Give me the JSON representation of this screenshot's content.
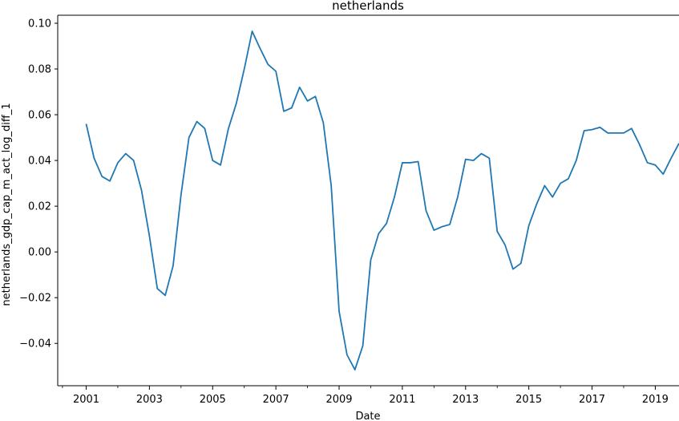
{
  "chart_data": {
    "type": "line",
    "title": "netherlands",
    "xlabel": "Date",
    "ylabel": "netherlands_gdp_cap_m_act_log_diff_1",
    "xlim": [
      2000.1,
      2019.75
    ],
    "ylim": [
      -0.0585,
      0.1035
    ],
    "grid": false,
    "color": "#1f77b4",
    "x_major_ticks": [
      2001,
      2003,
      2005,
      2007,
      2009,
      2011,
      2013,
      2015,
      2017,
      2019
    ],
    "x_minor_ticks": [
      2000.25,
      2002,
      2004,
      2006,
      2008,
      2010,
      2012,
      2014,
      2016,
      2018
    ],
    "y_ticks": [
      -0.04,
      -0.02,
      0.0,
      0.02,
      0.04,
      0.06,
      0.08,
      0.1
    ],
    "y_tick_labels": [
      "−0.04",
      "−0.02",
      "0.00",
      "0.02",
      "0.04",
      "0.06",
      "0.08",
      "0.10"
    ],
    "x_tick_labels": [
      "2001",
      "2003",
      "2005",
      "2007",
      "2009",
      "2011",
      "2013",
      "2015",
      "2017",
      "2019"
    ],
    "series": [
      {
        "x": [
          2001.0,
          2001.25,
          2001.5,
          2001.75,
          2002.0,
          2002.25,
          2002.5,
          2002.75,
          2003.0,
          2003.25,
          2003.5,
          2003.75,
          2004.0,
          2004.25,
          2004.5,
          2004.75,
          2005.0,
          2005.25,
          2005.5,
          2005.75,
          2006.0,
          2006.25,
          2006.5,
          2006.75,
          2007.0,
          2007.25,
          2007.5,
          2007.75,
          2008.0,
          2008.25,
          2008.5,
          2008.75,
          2009.0,
          2009.25,
          2009.5,
          2009.75,
          2010.0,
          2010.25,
          2010.5,
          2010.75,
          2011.0,
          2011.25,
          2011.5,
          2011.75,
          2012.0,
          2012.25,
          2012.5,
          2012.75,
          2013.0,
          2013.25,
          2013.5,
          2013.75,
          2014.0,
          2014.25,
          2014.5,
          2014.75,
          2015.0,
          2015.25,
          2015.5,
          2015.75,
          2016.0,
          2016.25,
          2016.5,
          2016.75,
          2017.0,
          2017.25,
          2017.5,
          2017.75,
          2018.0,
          2018.25,
          2018.5,
          2018.75,
          2019.0,
          2019.25,
          2019.5,
          2019.75
        ],
        "values": [
          0.056,
          0.041,
          0.033,
          0.031,
          0.039,
          0.043,
          0.04,
          0.027,
          0.007,
          -0.016,
          -0.019,
          -0.006,
          0.025,
          0.05,
          0.057,
          0.054,
          0.04,
          0.038,
          0.054,
          0.065,
          0.08,
          0.0965,
          0.089,
          0.082,
          0.079,
          0.0615,
          0.063,
          0.072,
          0.066,
          0.068,
          0.0565,
          0.029,
          -0.026,
          -0.045,
          -0.0515,
          -0.041,
          -0.0035,
          0.008,
          0.0125,
          0.024,
          0.039,
          0.039,
          0.0395,
          0.018,
          0.0095,
          0.011,
          0.012,
          0.024,
          0.0405,
          0.04,
          0.043,
          0.041,
          0.009,
          0.003,
          -0.0075,
          -0.005,
          0.0115,
          0.021,
          0.029,
          0.024,
          0.03,
          0.032,
          0.04,
          0.053,
          0.0535,
          0.0545,
          0.052,
          0.052,
          0.052,
          0.054,
          0.047,
          0.039,
          0.038,
          0.034,
          0.041,
          0.0475
        ]
      }
    ]
  }
}
